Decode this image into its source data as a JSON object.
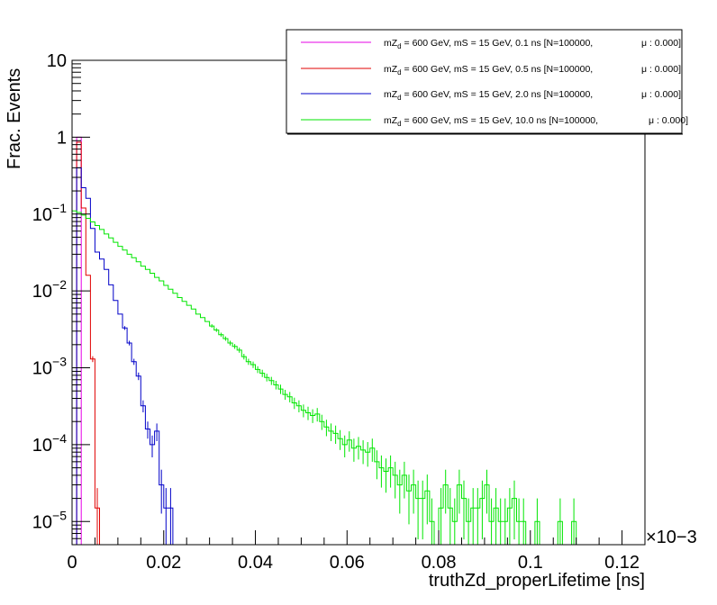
{
  "chart_data": {
    "type": "line",
    "subtype": "histogram",
    "xlabel": "truthZd_properLifetime [ns]",
    "ylabel": "Frac. Events",
    "x_multiplier": "×10−3",
    "xlim": [
      0,
      0.125
    ],
    "ylim": [
      5e-06,
      10
    ],
    "y_scale": "log",
    "grid": false,
    "legend_position": "top-right",
    "x_ticks": [
      0,
      0.02,
      0.04,
      0.06,
      0.08,
      0.1,
      0.12
    ],
    "x_tick_labels": [
      "0",
      "0.02",
      "0.04",
      "0.06",
      "0.08",
      "0.1",
      "0.12"
    ],
    "y_ticks": [
      {
        "value": 1e-05,
        "base": "10",
        "exp": "−5"
      },
      {
        "value": 0.0001,
        "base": "10",
        "exp": "−4"
      },
      {
        "value": 0.001,
        "base": "10",
        "exp": "−3"
      },
      {
        "value": 0.01,
        "base": "10",
        "exp": "−2"
      },
      {
        "value": 0.1,
        "base": "10",
        "exp": "−1"
      },
      {
        "value": 1,
        "base": "1",
        "exp": ""
      },
      {
        "value": 10,
        "base": "10",
        "exp": ""
      }
    ],
    "bin_width": 0.001,
    "series": [
      {
        "legend_parts": [
          "mZ",
          "d",
          " = 600 GeV, mS = 15 GeV, 0.1 ns [N=100000,",
          "μ : 0.000]"
        ],
        "color": "#e600e6",
        "x": [
          0,
          0.001
        ],
        "values": [
          0,
          1.0
        ]
      },
      {
        "legend_parts": [
          "mZ",
          "d",
          " = 600 GeV, mS = 15 GeV, 0.5 ns [N=100000,",
          "μ : 0.000]"
        ],
        "color": "#e00000",
        "x": [
          0,
          0.001,
          0.002,
          0.003,
          0.004,
          0.005
        ],
        "values": [
          0,
          0.86,
          0.12,
          0.016,
          0.0013,
          1.5e-05
        ]
      },
      {
        "legend_parts": [
          "mZ",
          "d",
          " = 600 GeV, mS = 15 GeV, 2.0 ns [N=100000,",
          "μ : 0.000]"
        ],
        "color": "#0000c8",
        "x": [
          0,
          0.001,
          0.002,
          0.003,
          0.004,
          0.005,
          0.006,
          0.007,
          0.008,
          0.009,
          0.01,
          0.011,
          0.012,
          0.013,
          0.014,
          0.015,
          0.016,
          0.017,
          0.018,
          0.019,
          0.02,
          0.021
        ],
        "values": [
          0,
          0.4,
          0.22,
          0.16,
          0.065,
          0.032,
          0.026,
          0.019,
          0.012,
          0.0075,
          0.005,
          0.0033,
          0.0021,
          0.0012,
          0.00078,
          0.00032,
          0.00016,
          0.0001,
          0.00015,
          3e-05,
          1.5e-05,
          1.5e-05
        ]
      },
      {
        "legend_parts": [
          "mZ",
          "d",
          " = 600 GeV, mS = 15 GeV, 10.0 ns [N=100000,",
          "μ : 0.000]"
        ],
        "color": "#00e600",
        "x": [
          0,
          0.001,
          0.002,
          0.003,
          0.004,
          0.005,
          0.006,
          0.007,
          0.008,
          0.009,
          0.01,
          0.011,
          0.012,
          0.013,
          0.014,
          0.015,
          0.016,
          0.017,
          0.018,
          0.019,
          0.02,
          0.021,
          0.022,
          0.023,
          0.024,
          0.025,
          0.026,
          0.027,
          0.028,
          0.029,
          0.03,
          0.031,
          0.032,
          0.033,
          0.034,
          0.035,
          0.036,
          0.037,
          0.038,
          0.039,
          0.04,
          0.041,
          0.042,
          0.043,
          0.044,
          0.045,
          0.046,
          0.047,
          0.048,
          0.049,
          0.05,
          0.051,
          0.052,
          0.053,
          0.054,
          0.055,
          0.056,
          0.057,
          0.058,
          0.059,
          0.06,
          0.061,
          0.062,
          0.063,
          0.064,
          0.065,
          0.066,
          0.067,
          0.068,
          0.069,
          0.07,
          0.071,
          0.072,
          0.073,
          0.074,
          0.075,
          0.076,
          0.077,
          0.078,
          0.079,
          0.08,
          0.081,
          0.082,
          0.083,
          0.084,
          0.085,
          0.086,
          0.087,
          0.088,
          0.089,
          0.09,
          0.091,
          0.092,
          0.093,
          0.094,
          0.095,
          0.096,
          0.097,
          0.098,
          0.099,
          0.1,
          0.101,
          0.102,
          0.103,
          0.104,
          0.105,
          0.106,
          0.107,
          0.108,
          0.109,
          0.11,
          0.111,
          0.112,
          0.113,
          0.114,
          0.115,
          0.116,
          0.117,
          0.118,
          0.119,
          0.12,
          0.121,
          0.122,
          0.123,
          0.124
        ],
        "values": [
          0.11,
          0.105,
          0.097,
          0.088,
          0.079,
          0.071,
          0.063,
          0.055,
          0.049,
          0.043,
          0.038,
          0.034,
          0.03,
          0.027,
          0.024,
          0.021,
          0.019,
          0.017,
          0.015,
          0.0135,
          0.0118,
          0.0105,
          0.0093,
          0.0082,
          0.0073,
          0.0065,
          0.0058,
          0.005,
          0.0045,
          0.004,
          0.0035,
          0.0031,
          0.0027,
          0.0024,
          0.0021,
          0.0019,
          0.0017,
          0.0014,
          0.0012,
          0.0011,
          0.00095,
          0.00085,
          0.00075,
          0.00068,
          0.0006,
          0.00053,
          0.00045,
          0.00042,
          0.00035,
          0.00032,
          0.00028,
          0.00026,
          0.00024,
          0.00025,
          0.0002,
          0.00017,
          0.00015,
          0.00014,
          0.00012,
          0.0001,
          0.000115,
          9e-05,
          9.5e-05,
          8.5e-05,
          8e-05,
          9e-05,
          6e-05,
          5e-05,
          4.5e-05,
          5e-05,
          4e-05,
          3e-05,
          4e-05,
          2.5e-05,
          3e-05,
          2e-05,
          2e-05,
          2.5e-05,
          1e-05,
          5e-06,
          1.5e-05,
          3e-05,
          1.5e-05,
          1e-05,
          3e-05,
          2e-05,
          1e-05,
          1.5e-05,
          1.5e-05,
          2e-05,
          3e-05,
          1e-05,
          1.5e-05,
          1e-05,
          1e-05,
          1.5e-05,
          2e-05,
          1e-05,
          1e-05,
          5e-06,
          5e-06,
          1e-05,
          5e-06,
          5e-06,
          5e-06,
          5e-06,
          1e-05,
          5e-06,
          5e-06,
          1e-05,
          5e-06,
          5e-06,
          5e-06,
          5e-06,
          5e-06,
          5e-06,
          5e-06,
          5e-06,
          5e-06,
          5e-06,
          5e-06,
          5e-06,
          5e-06,
          5e-06,
          5e-06
        ]
      }
    ]
  }
}
